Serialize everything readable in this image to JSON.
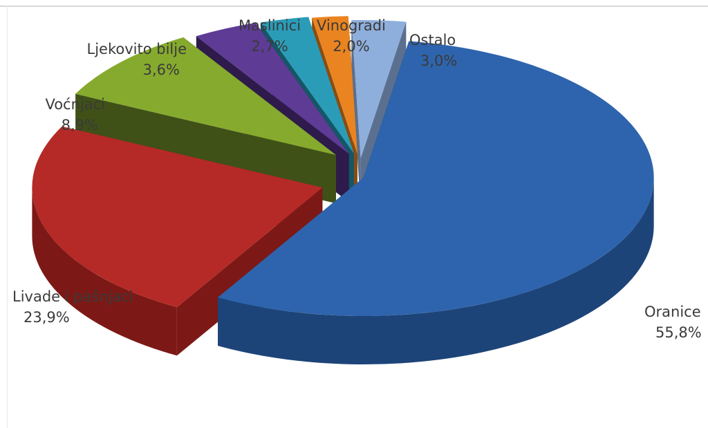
{
  "chart_data": {
    "type": "pie",
    "style": "3d-exploded",
    "slices": [
      {
        "label": "Oranice",
        "value_label": "55,8%",
        "value": 55.8,
        "color": "#2e64ad",
        "side": "#1d4478",
        "label_anchor": "start"
      },
      {
        "label": "Livade i pašnjaci",
        "value_label": "23,9%",
        "value": 23.9,
        "color": "#b52a26",
        "side": "#7c1916",
        "label_anchor": "start"
      },
      {
        "label": "Voćnjaci",
        "value_label": "8,9%",
        "value": 8.9,
        "color": "#86aa2e",
        "side": "#3f5117",
        "label_anchor": "end"
      },
      {
        "label": "Ljekovito bilje",
        "value_label": "3,6%",
        "value": 3.6,
        "color": "#5e3b95",
        "side": "#2e1b4b",
        "label_anchor": "end"
      },
      {
        "label": "Maslinici",
        "value_label": "2,7%",
        "value": 2.7,
        "color": "#2a9cb8",
        "side": "#145767",
        "label_anchor": "middle"
      },
      {
        "label": "Vinogradi",
        "value_label": "2,0%",
        "value": 2.0,
        "color": "#ea8420",
        "side": "#8a4c10",
        "label_anchor": "middle"
      },
      {
        "label": "Ostalo",
        "value_label": "3,0%",
        "value": 3.0,
        "color": "#8eaedb",
        "side": "#5b6f8f",
        "label_anchor": "start"
      }
    ]
  }
}
